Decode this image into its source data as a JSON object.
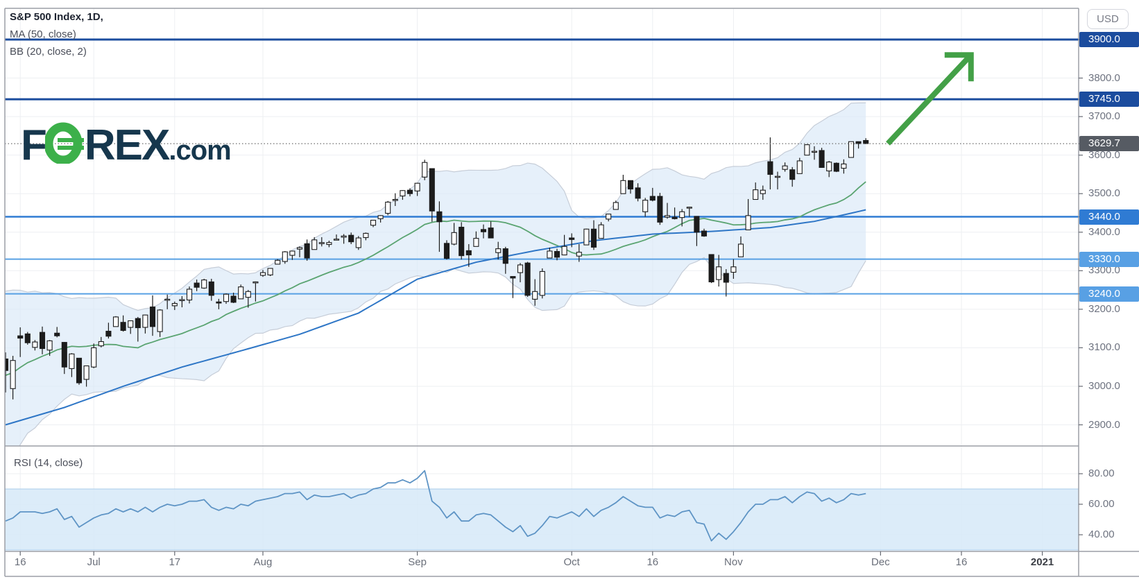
{
  "header": {
    "title": "S&P 500 Index, 1D,",
    "ma_label": "MA (50, close)",
    "bb_label": "BB (20, close, 2)"
  },
  "rsi_panel": {
    "label": "RSI (14, close)"
  },
  "logo": {
    "before_o": "F",
    "after_o": "REX",
    "suffix": ".com"
  },
  "axis": {
    "currency_button": "USD"
  },
  "colors": {
    "navy": "#1b4c9e",
    "blue": "#2f7bd3",
    "light_blue": "#58a0e4",
    "candle": "#1c1c1c",
    "ma50": "#2e76c6",
    "sma20": "#5aa471",
    "bb_fill": "#d9e8f7",
    "bb_edge": "#c6cdd8",
    "rsi_line": "#5e94c5",
    "rsi_band": "#d6e9f8",
    "rsi_band_edge": "#aacdea",
    "grid": "#edeff2",
    "frame": "#9b9ea6",
    "arrow_green": "#43a047",
    "axis_text": "#6e7380",
    "badge_gray": "#565b63",
    "logo_navy": "#16374d",
    "logo_green": "#3cb04a",
    "dotted": "#6a6a6a"
  },
  "chart_data": {
    "type": "candlestick",
    "title": "S&P 500 Index",
    "interval": "1D",
    "currency": "USD",
    "indicators": [
      "MA (50, close)",
      "BB (20, close, 2)",
      "RSI (14, close)"
    ],
    "ylim": [
      2844,
      3981
    ],
    "current_price": 3629.7,
    "levels": [
      {
        "price": 3900,
        "style": "navy"
      },
      {
        "price": 3745,
        "style": "navy"
      },
      {
        "price": 3440,
        "style": "blue"
      },
      {
        "price": 3330,
        "style": "lightblue"
      },
      {
        "price": 3240,
        "style": "lightblue"
      }
    ],
    "price_ticks": [
      {
        "label": "3900.0",
        "price": 3900,
        "badge": "navy"
      },
      {
        "label": "3800.0",
        "price": 3800
      },
      {
        "label": "3745.0",
        "price": 3745,
        "badge": "navy"
      },
      {
        "label": "3700.0",
        "price": 3700
      },
      {
        "label": "3629.7",
        "price": 3629.7,
        "badge": "gray"
      },
      {
        "label": "3600.0",
        "price": 3600
      },
      {
        "label": "3500.0",
        "price": 3500
      },
      {
        "label": "3440.0",
        "price": 3440,
        "badge": "blue"
      },
      {
        "label": "3400.0",
        "price": 3400
      },
      {
        "label": "3330.0",
        "price": 3330,
        "badge": "lightblue"
      },
      {
        "label": "3300.0",
        "price": 3300
      },
      {
        "label": "3240.0",
        "price": 3240,
        "badge": "lightblue"
      },
      {
        "label": "3200.0",
        "price": 3200
      },
      {
        "label": "3100.0",
        "price": 3100
      },
      {
        "label": "3000.0",
        "price": 3000
      },
      {
        "label": "2900.0",
        "price": 2900
      }
    ],
    "rsi_ticks": [
      {
        "label": "80.00",
        "value": 80
      },
      {
        "label": "60.00",
        "value": 60
      },
      {
        "label": "40.00",
        "value": 40
      }
    ],
    "rsi_band": [
      30,
      70
    ],
    "x_ticks": [
      {
        "label": "16",
        "idx": 2
      },
      {
        "label": "Jul",
        "idx": 12
      },
      {
        "label": "17",
        "idx": 23
      },
      {
        "label": "Aug",
        "idx": 35
      },
      {
        "label": "Sep",
        "idx": 56
      },
      {
        "label": "Oct",
        "idx": 77
      },
      {
        "label": "16",
        "idx": 88
      },
      {
        "label": "Nov",
        "idx": 99
      },
      {
        "label": "Dec",
        "idx": 119
      },
      {
        "label": "16",
        "idx": 130
      },
      {
        "label": "2021",
        "idx": 141,
        "bold": true
      }
    ],
    "arrow": {
      "from": {
        "idx": 120,
        "price": 3630
      },
      "to": {
        "idx": 131.3,
        "price": 3860
      },
      "head": 38
    },
    "candles": [
      [
        3071,
        3088,
        2984,
        3041
      ],
      [
        2994,
        3079,
        2966,
        3067
      ],
      [
        3131,
        3153,
        3076,
        3125
      ],
      [
        3136,
        3141,
        3108,
        3113
      ],
      [
        3101,
        3120,
        3093,
        3115
      ],
      [
        3140,
        3155,
        3083,
        3098
      ],
      [
        3094,
        3120,
        3079,
        3118
      ],
      [
        3138,
        3154,
        3127,
        3131
      ],
      [
        3114,
        3115,
        3032,
        3050
      ],
      [
        3046,
        3086,
        3024,
        3084
      ],
      [
        3073,
        3073,
        3004,
        3009
      ],
      [
        3018,
        3053,
        2999,
        3053
      ],
      [
        3050,
        3111,
        3047,
        3100
      ],
      [
        3105,
        3128,
        3101,
        3116
      ],
      [
        3143,
        3165,
        3124,
        3130
      ],
      [
        3155,
        3182,
        3155,
        3180
      ],
      [
        3166,
        3184,
        3142,
        3145
      ],
      [
        3153,
        3171,
        3136,
        3170
      ],
      [
        3176,
        3180,
        3116,
        3152
      ],
      [
        3153,
        3186,
        3137,
        3185
      ],
      [
        3206,
        3236,
        3131,
        3155
      ],
      [
        3142,
        3200,
        3128,
        3198
      ],
      [
        3226,
        3238,
        3200,
        3226
      ],
      [
        3209,
        3220,
        3198,
        3215
      ],
      [
        3224,
        3234,
        3205,
        3225
      ],
      [
        3224,
        3259,
        3215,
        3252
      ],
      [
        3268,
        3277,
        3247,
        3257
      ],
      [
        3255,
        3279,
        3253,
        3276
      ],
      [
        3271,
        3279,
        3222,
        3236
      ],
      [
        3219,
        3227,
        3200,
        3216
      ],
      [
        3220,
        3241,
        3214,
        3239
      ],
      [
        3234,
        3243,
        3216,
        3218
      ],
      [
        3227,
        3264,
        3227,
        3258
      ],
      [
        3231,
        3250,
        3204,
        3246
      ],
      [
        3270,
        3272,
        3220,
        3271
      ],
      [
        3288,
        3302,
        3284,
        3295
      ],
      [
        3289,
        3306,
        3286,
        3306
      ],
      [
        3317,
        3330,
        3317,
        3327
      ],
      [
        3324,
        3351,
        3318,
        3349
      ],
      [
        3340,
        3352,
        3328,
        3351
      ],
      [
        3356,
        3363,
        3335,
        3360
      ],
      [
        3370,
        3381,
        3326,
        3333
      ],
      [
        3355,
        3387,
        3355,
        3380
      ],
      [
        3372,
        3387,
        3363,
        3373
      ],
      [
        3368,
        3378,
        3361,
        3373
      ],
      [
        3380,
        3394,
        3379,
        3382
      ],
      [
        3387,
        3395,
        3370,
        3390
      ],
      [
        3392,
        3399,
        3369,
        3375
      ],
      [
        3360,
        3390,
        3354,
        3385
      ],
      [
        3386,
        3399,
        3379,
        3397
      ],
      [
        3418,
        3432,
        3413,
        3431
      ],
      [
        3435,
        3444,
        3425,
        3443
      ],
      [
        3449,
        3481,
        3444,
        3478
      ],
      [
        3485,
        3501,
        3468,
        3485
      ],
      [
        3494,
        3509,
        3484,
        3508
      ],
      [
        3509,
        3514,
        3493,
        3500
      ],
      [
        3507,
        3528,
        3494,
        3527
      ],
      [
        3543,
        3588,
        3535,
        3581
      ],
      [
        3565,
        3565,
        3427,
        3455
      ],
      [
        3453,
        3480,
        3349,
        3427
      ],
      [
        3371,
        3379,
        3329,
        3332
      ],
      [
        3369,
        3424,
        3366,
        3399
      ],
      [
        3413,
        3426,
        3329,
        3339
      ],
      [
        3352,
        3369,
        3310,
        3341
      ],
      [
        3363,
        3402,
        3363,
        3384
      ],
      [
        3407,
        3420,
        3384,
        3401
      ],
      [
        3411,
        3428,
        3385,
        3385
      ],
      [
        3347,
        3375,
        3329,
        3357
      ],
      [
        3357,
        3362,
        3292,
        3319
      ],
      [
        3285,
        3285,
        3229,
        3281
      ],
      [
        3295,
        3320,
        3270,
        3315
      ],
      [
        3320,
        3323,
        3232,
        3236
      ],
      [
        3226,
        3278,
        3209,
        3246
      ],
      [
        3236,
        3306,
        3228,
        3298
      ],
      [
        3333,
        3360,
        3332,
        3351
      ],
      [
        3350,
        3357,
        3327,
        3335
      ],
      [
        3341,
        3393,
        3340,
        3363
      ],
      [
        3385,
        3397,
        3361,
        3381
      ],
      [
        3338,
        3369,
        3323,
        3348
      ],
      [
        3367,
        3409,
        3367,
        3408
      ],
      [
        3408,
        3431,
        3354,
        3361
      ],
      [
        3384,
        3426,
        3384,
        3419
      ],
      [
        3434,
        3447,
        3428,
        3447
      ],
      [
        3459,
        3482,
        3458,
        3477
      ],
      [
        3500,
        3549,
        3500,
        3534
      ],
      [
        3534,
        3534,
        3500,
        3512
      ],
      [
        3515,
        3527,
        3480,
        3488
      ],
      [
        3453,
        3489,
        3440,
        3483
      ],
      [
        3493,
        3515,
        3480,
        3483
      ],
      [
        3493,
        3502,
        3419,
        3426
      ],
      [
        3439,
        3476,
        3435,
        3443
      ],
      [
        3439,
        3464,
        3433,
        3435
      ],
      [
        3438,
        3460,
        3415,
        3453
      ],
      [
        3464,
        3466,
        3440,
        3465
      ],
      [
        3441,
        3441,
        3364,
        3400
      ],
      [
        3403,
        3409,
        3388,
        3390
      ],
      [
        3342,
        3342,
        3268,
        3271
      ],
      [
        3277,
        3341,
        3259,
        3310
      ],
      [
        3293,
        3304,
        3233,
        3270
      ],
      [
        3296,
        3330,
        3279,
        3310
      ],
      [
        3336,
        3389,
        3336,
        3369
      ],
      [
        3406,
        3486,
        3405,
        3443
      ],
      [
        3485,
        3529,
        3485,
        3510
      ],
      [
        3500,
        3521,
        3484,
        3509
      ],
      [
        3583,
        3646,
        3511,
        3550
      ],
      [
        3543,
        3557,
        3511,
        3545
      ],
      [
        3563,
        3581,
        3557,
        3572
      ],
      [
        3562,
        3569,
        3518,
        3537
      ],
      [
        3552,
        3593,
        3552,
        3585
      ],
      [
        3600,
        3628,
        3600,
        3627
      ],
      [
        3610,
        3623,
        3588,
        3610
      ],
      [
        3612,
        3619,
        3567,
        3568
      ],
      [
        3559,
        3585,
        3543,
        3582
      ],
      [
        3579,
        3581,
        3556,
        3558
      ],
      [
        3566,
        3589,
        3552,
        3577
      ],
      [
        3594,
        3635,
        3594,
        3635
      ],
      [
        3635,
        3635,
        3617,
        3630
      ],
      [
        3638,
        3644,
        3629,
        3630
      ]
    ],
    "rsi": [
      49,
      51,
      55,
      55,
      55,
      54,
      55,
      57,
      50,
      52,
      45,
      48,
      51,
      53,
      54,
      57,
      55,
      57,
      55,
      58,
      55,
      58,
      60,
      59,
      60,
      62,
      62,
      63,
      58,
      56,
      58,
      57,
      60,
      59,
      62,
      63,
      64,
      65,
      67,
      67,
      68,
      63,
      66,
      65,
      65,
      66,
      67,
      64,
      66,
      67,
      70,
      71,
      74,
      74,
      76,
      74,
      77,
      82,
      62,
      58,
      51,
      55,
      49,
      49,
      53,
      54,
      53,
      49,
      45,
      42,
      46,
      39,
      41,
      46,
      52,
      51,
      53,
      55,
      52,
      57,
      52,
      56,
      58,
      61,
      65,
      62,
      59,
      58,
      58,
      51,
      53,
      52,
      55,
      56,
      48,
      47,
      36,
      41,
      37,
      42,
      48,
      55,
      60,
      60,
      63,
      63,
      65,
      61,
      65,
      68,
      67,
      62,
      64,
      61,
      63,
      67,
      66,
      67
    ],
    "bb": {
      "period": 20,
      "mult": 2,
      "seed_closes": [
        2930,
        2853,
        2864,
        2954,
        2923,
        2972,
        2949,
        2955,
        2992,
        3036,
        3030,
        3044,
        3090,
        3112,
        3193,
        3232,
        3207,
        3190,
        3002
      ]
    },
    "ma50": {
      "period": 50,
      "anchors": [
        [
          0,
          2900
        ],
        [
          8,
          2945
        ],
        [
          16,
          3000
        ],
        [
          24,
          3050
        ],
        [
          32,
          3092
        ],
        [
          40,
          3135
        ],
        [
          48,
          3190
        ],
        [
          56,
          3278
        ],
        [
          64,
          3322
        ],
        [
          72,
          3352
        ],
        [
          80,
          3378
        ],
        [
          88,
          3395
        ],
        [
          96,
          3402
        ],
        [
          104,
          3412
        ],
        [
          110,
          3428
        ],
        [
          114,
          3445
        ],
        [
          117,
          3458
        ]
      ]
    }
  }
}
